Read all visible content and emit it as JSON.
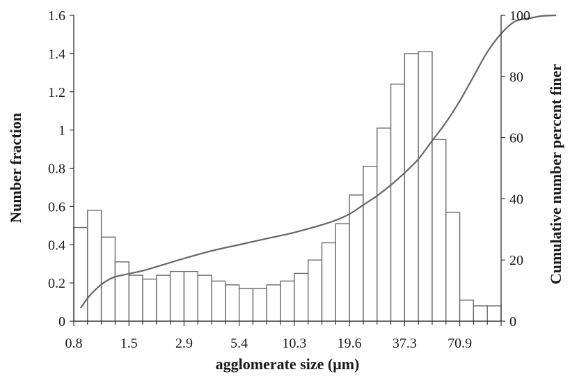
{
  "chart_data": {
    "type": "bar",
    "xlabel": "agglomerate size (μm)",
    "ylabel": "Number fraction",
    "y2label": "Cumulative number percent finer",
    "ylim": [
      0,
      1.6
    ],
    "yticks": [
      0,
      0.2,
      0.4,
      0.6,
      0.8,
      1,
      1.2,
      1.4,
      1.6
    ],
    "ytick_labels": [
      "0",
      "0.2",
      "0.4",
      "0.6",
      "0.8",
      "1",
      "1.2",
      "1.4",
      "1.6"
    ],
    "y2lim": [
      0,
      100
    ],
    "y2ticks": [
      0,
      20,
      40,
      60,
      80,
      100
    ],
    "y2tick_labels": [
      "0",
      "20",
      "40",
      "60",
      "80",
      "100"
    ],
    "xtick_labels": [
      "0.8",
      "1.5",
      "2.9",
      "5.4",
      "10.3",
      "19.6",
      "37.3",
      "70.9"
    ],
    "xtick_bin_index": [
      0,
      4,
      8,
      12,
      16,
      20,
      24,
      28
    ],
    "grid": false,
    "legend": "none",
    "series": [
      {
        "type": "bar",
        "values": [
          0.49,
          0.58,
          0.44,
          0.31,
          0.24,
          0.22,
          0.24,
          0.26,
          0.26,
          0.24,
          0.21,
          0.19,
          0.17,
          0.17,
          0.19,
          0.21,
          0.25,
          0.32,
          0.41,
          0.51,
          0.66,
          0.81,
          1.01,
          1.24,
          1.4,
          1.41,
          0.95,
          0.57,
          0.11,
          0.08,
          0.08
        ],
        "color": "#6b6b6b"
      },
      {
        "type": "line",
        "axis": "y2",
        "values": [
          [
            0.5,
            4.3
          ],
          [
            1.0,
            7.5
          ],
          [
            1.5,
            10.0
          ],
          [
            2.0,
            12.0
          ],
          [
            2.5,
            13.5
          ],
          [
            3.0,
            14.5
          ],
          [
            4.0,
            15.5
          ],
          [
            5.0,
            16.5
          ],
          [
            6.0,
            17.8
          ],
          [
            8.0,
            20.5
          ],
          [
            10.0,
            23.0
          ],
          [
            12.0,
            25.0
          ],
          [
            14.0,
            27.0
          ],
          [
            16.0,
            29.0
          ],
          [
            18.0,
            31.5
          ],
          [
            19.0,
            33.0
          ],
          [
            20.0,
            35.0
          ],
          [
            21.0,
            38.0
          ],
          [
            22.0,
            41.0
          ],
          [
            23.0,
            44.5
          ],
          [
            24.0,
            48.5
          ],
          [
            25.0,
            53.0
          ],
          [
            26.0,
            59.0
          ],
          [
            27.0,
            65.0
          ],
          [
            28.0,
            72.0
          ],
          [
            29.0,
            80.0
          ],
          [
            30.0,
            88.0
          ],
          [
            31.0,
            94.0
          ],
          [
            32.0,
            98.0
          ],
          [
            33.0,
            99.0
          ],
          [
            34.0,
            99.8
          ],
          [
            35.0,
            100
          ]
        ],
        "color": "#666666"
      }
    ]
  }
}
